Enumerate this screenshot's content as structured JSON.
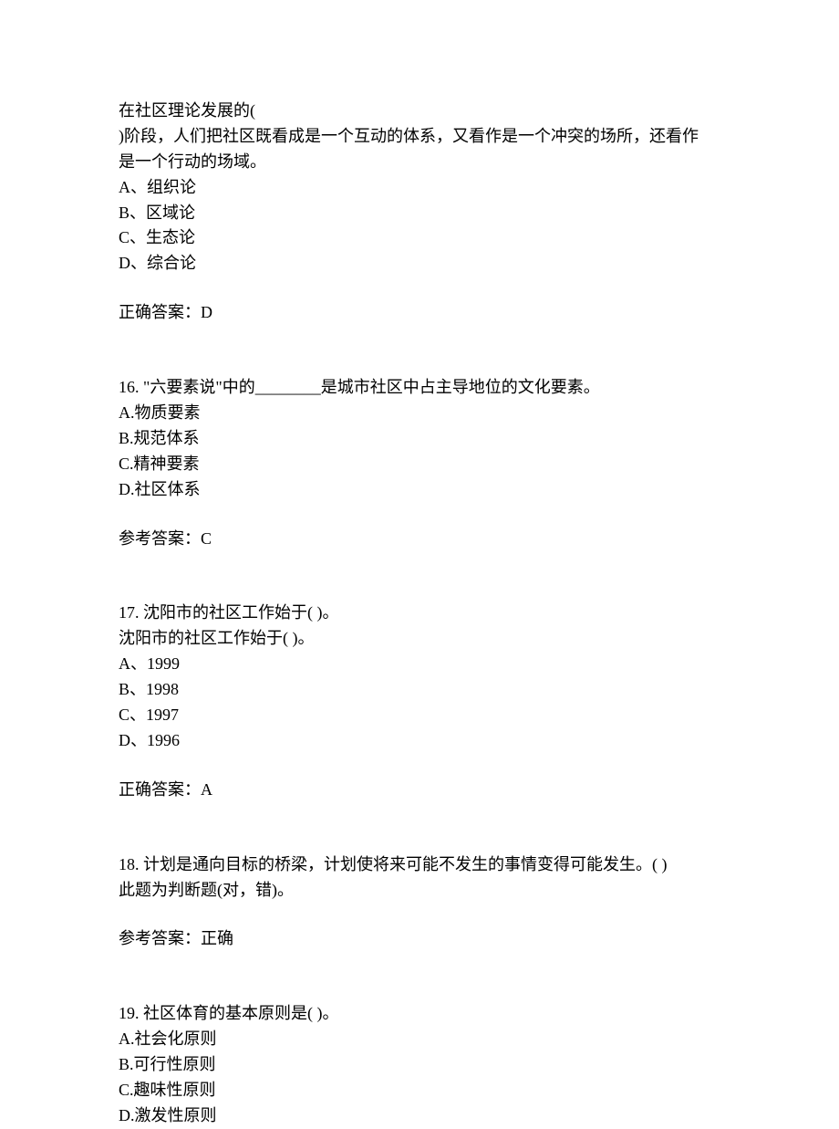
{
  "q15": {
    "stem_line1": "在社区理论发展的(",
    "stem_line2": ")阶段，人们把社区既看成是一个互动的体系，又看作是一个冲突的场所，还看作",
    "stem_line3": "是一个行动的场域。",
    "optA": "A、组织论",
    "optB": "B、区域论",
    "optC": "C、生态论",
    "optD": "D、综合论",
    "answer": "正确答案：D"
  },
  "q16": {
    "stem": "16.  \"六要素说\"中的________是城市社区中占主导地位的文化要素。",
    "optA": "A.物质要素",
    "optB": "B.规范体系",
    "optC": "C.精神要素",
    "optD": "D.社区体系",
    "answer": "参考答案：C"
  },
  "q17": {
    "stem_line1": "17.  沈阳市的社区工作始于(  )。",
    "stem_line2": "沈阳市的社区工作始于(  )。",
    "optA": "A、1999",
    "optB": "B、1998",
    "optC": "C、1997",
    "optD": "D、1996",
    "answer": "正确答案：A"
  },
  "q18": {
    "stem_line1": "18.  计划是通向目标的桥梁，计划使将来可能不发生的事情变得可能发生。(   )",
    "stem_line2": "此题为判断题(对，错)。",
    "answer": "参考答案：正确"
  },
  "q19": {
    "stem": "19.  社区体育的基本原则是(  )。",
    "optA": "A.社会化原则",
    "optB": "B.可行性原则",
    "optC": "C.趣味性原则",
    "optD": "D.激发性原则"
  }
}
